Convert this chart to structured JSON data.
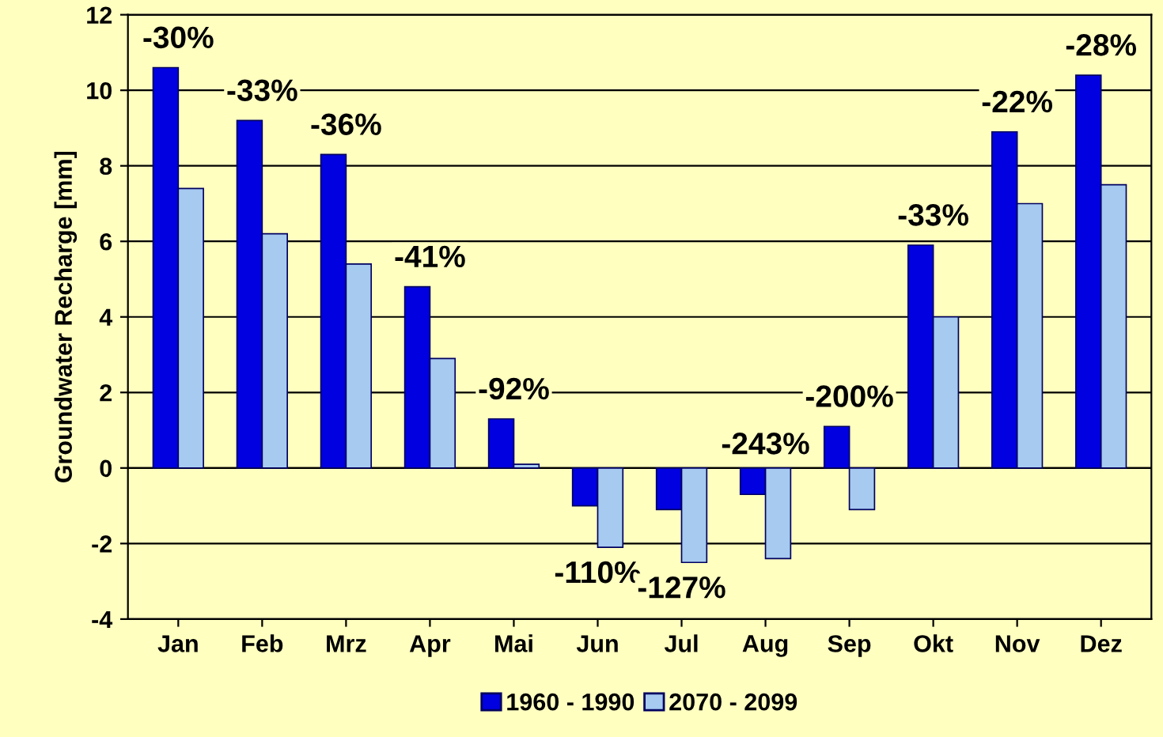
{
  "chart_data": {
    "type": "bar",
    "ylabel": "Groundwater Recharge [mm]",
    "categories": [
      "Jan",
      "Feb",
      "Mrz",
      "Apr",
      "Mai",
      "Jun",
      "Jul",
      "Aug",
      "Sep",
      "Okt",
      "Nov",
      "Dez"
    ],
    "series": [
      {
        "name": "1960 - 1990",
        "color": "#0000e0",
        "values": [
          10.6,
          9.2,
          8.3,
          4.8,
          1.3,
          -1.0,
          -1.1,
          -0.7,
          1.1,
          5.9,
          8.9,
          10.4
        ]
      },
      {
        "name": "2070 - 2099",
        "color": "#a6caf0",
        "values": [
          7.4,
          6.2,
          5.4,
          2.9,
          0.1,
          -2.1,
          -2.5,
          -2.4,
          -1.1,
          4.0,
          7.0,
          7.5
        ]
      }
    ],
    "annotations": [
      "-30%",
      "-33%",
      "-36%",
      "-41%",
      "-92%",
      "-110%",
      "-127%",
      "-243%",
      "-200%",
      "-33%",
      "-22%",
      "-28%"
    ],
    "ylim": [
      -4,
      12
    ],
    "yticks": [
      -4,
      -2,
      0,
      2,
      4,
      6,
      8,
      10,
      12
    ],
    "grid": "y",
    "legend": "bottom"
  }
}
